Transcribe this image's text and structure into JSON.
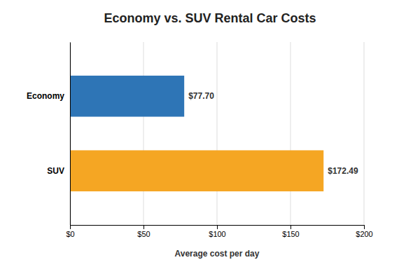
{
  "chart_data": {
    "type": "bar",
    "orientation": "horizontal",
    "title": "Economy vs. SUV Rental Car Costs",
    "xlabel": "Average cost per day",
    "categories": [
      "SUV",
      "Economy"
    ],
    "values": [
      172.49,
      77.7
    ],
    "value_labels": [
      "$172.49",
      "$77.70"
    ],
    "data_labels": true,
    "colors": [
      "#F5A623",
      "#2E75B6"
    ],
    "xlim": [
      0,
      200
    ],
    "xticks": [
      {
        "value": 0,
        "label": "$0"
      },
      {
        "value": 50,
        "label": "$50"
      },
      {
        "value": 100,
        "label": "$100"
      },
      {
        "value": 150,
        "label": "$150"
      },
      {
        "value": 200,
        "label": "$200"
      }
    ],
    "grid": true
  }
}
